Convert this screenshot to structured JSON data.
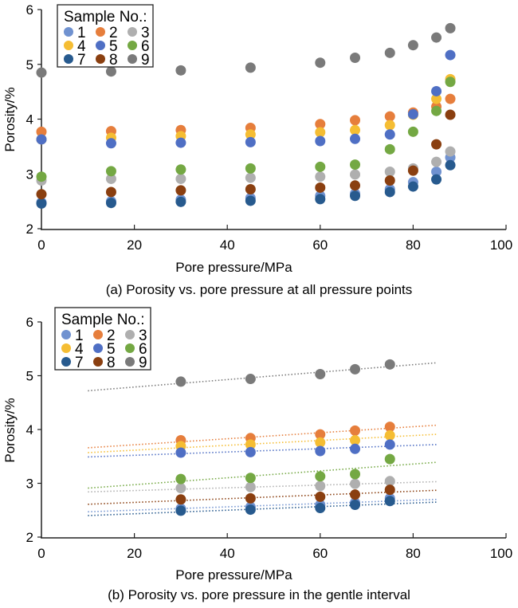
{
  "chart_data": [
    {
      "type": "scatter",
      "caption": "(a) Porosity vs. pore pressure at all pressure points",
      "xlabel": "Pore pressure/MPa",
      "ylabel": "Porosity/%",
      "xlim": [
        0,
        100
      ],
      "ylim": [
        2,
        6
      ],
      "xticks": [
        0,
        20,
        40,
        60,
        80,
        100
      ],
      "yticks": [
        2,
        3,
        4,
        5,
        6
      ],
      "grid": false,
      "legend": {
        "title": "Sample No.:",
        "placement": "top-left"
      },
      "x": [
        0,
        15,
        30,
        45,
        60,
        67.5,
        75,
        80,
        85,
        88
      ],
      "series": [
        {
          "name": "1",
          "color": "#7092D0",
          "values": [
            2.48,
            2.5,
            2.53,
            2.56,
            2.6,
            2.64,
            2.72,
            2.85,
            3.04,
            3.3
          ]
        },
        {
          "name": "2",
          "color": "#E67E3C",
          "values": [
            3.77,
            3.78,
            3.8,
            3.84,
            3.91,
            3.98,
            4.05,
            4.12,
            4.23,
            4.37
          ]
        },
        {
          "name": "3",
          "color": "#AFAFAF",
          "values": [
            2.88,
            2.91,
            2.91,
            2.93,
            2.95,
            2.99,
            3.04,
            3.1,
            3.22,
            3.41
          ]
        },
        {
          "name": "4",
          "color": "#F5BD33",
          "values": [
            3.63,
            3.66,
            3.69,
            3.72,
            3.76,
            3.8,
            3.89,
            4.08,
            4.37,
            4.73
          ]
        },
        {
          "name": "5",
          "color": "#4F6FC4",
          "values": [
            3.63,
            3.56,
            3.57,
            3.58,
            3.6,
            3.64,
            3.72,
            4.09,
            4.51,
            5.17
          ]
        },
        {
          "name": "6",
          "color": "#74A843",
          "values": [
            2.95,
            3.05,
            3.08,
            3.1,
            3.13,
            3.17,
            3.45,
            3.77,
            4.15,
            4.68
          ]
        },
        {
          "name": "7",
          "color": "#275A8E",
          "values": [
            2.46,
            2.47,
            2.49,
            2.51,
            2.54,
            2.6,
            2.67,
            2.77,
            2.9,
            3.16
          ]
        },
        {
          "name": "8",
          "color": "#8A3F10",
          "values": [
            2.63,
            2.67,
            2.7,
            2.72,
            2.75,
            2.79,
            2.88,
            3.06,
            3.54,
            4.08
          ]
        },
        {
          "name": "9",
          "color": "#7A7A7A",
          "values": [
            4.85,
            4.87,
            4.89,
            4.94,
            5.03,
            5.12,
            5.21,
            5.35,
            5.49,
            5.66
          ]
        }
      ]
    },
    {
      "type": "scatter",
      "caption": "(b) Porosity vs. pore pressure in the gentle interval",
      "xlabel": "Pore pressure/MPa",
      "ylabel": "Porosity/%",
      "xlim": [
        0,
        100
      ],
      "ylim": [
        2,
        6
      ],
      "xticks": [
        0,
        20,
        40,
        60,
        80,
        100
      ],
      "yticks": [
        2,
        3,
        4,
        5,
        6
      ],
      "grid": false,
      "legend": {
        "title": "Sample No.:",
        "placement": "top-left"
      },
      "x": [
        30,
        45,
        60,
        67.5,
        75
      ],
      "trendline": {
        "type": "linear",
        "style": "dotted",
        "x_range": [
          10,
          85
        ]
      },
      "series": [
        {
          "name": "1",
          "color": "#7092D0",
          "values": [
            2.53,
            2.56,
            2.6,
            2.64,
            2.72
          ],
          "trend": [
            2.47,
            2.7
          ]
        },
        {
          "name": "2",
          "color": "#E67E3C",
          "values": [
            3.8,
            3.84,
            3.91,
            3.98,
            4.05
          ],
          "trend": [
            3.66,
            4.08
          ]
        },
        {
          "name": "3",
          "color": "#AFAFAF",
          "values": [
            2.91,
            2.93,
            2.95,
            2.99,
            3.04
          ],
          "trend": [
            2.84,
            3.03
          ]
        },
        {
          "name": "4",
          "color": "#F5BD33",
          "values": [
            3.69,
            3.72,
            3.76,
            3.8,
            3.89
          ],
          "trend": [
            3.57,
            3.91
          ]
        },
        {
          "name": "5",
          "color": "#4F6FC4",
          "values": [
            3.57,
            3.58,
            3.6,
            3.64,
            3.72
          ],
          "trend": [
            3.49,
            3.72
          ]
        },
        {
          "name": "6",
          "color": "#74A843",
          "values": [
            3.08,
            3.1,
            3.13,
            3.17,
            3.45
          ],
          "trend": [
            2.91,
            3.39
          ]
        },
        {
          "name": "7",
          "color": "#275A8E",
          "values": [
            2.49,
            2.51,
            2.54,
            2.6,
            2.67
          ],
          "trend": [
            2.4,
            2.65
          ]
        },
        {
          "name": "8",
          "color": "#8A3F10",
          "values": [
            2.7,
            2.72,
            2.75,
            2.79,
            2.88
          ],
          "trend": [
            2.61,
            2.87
          ]
        },
        {
          "name": "9",
          "color": "#7A7A7A",
          "values": [
            4.89,
            4.94,
            5.03,
            5.12,
            5.21
          ],
          "trend": [
            4.72,
            5.24
          ]
        }
      ]
    }
  ]
}
